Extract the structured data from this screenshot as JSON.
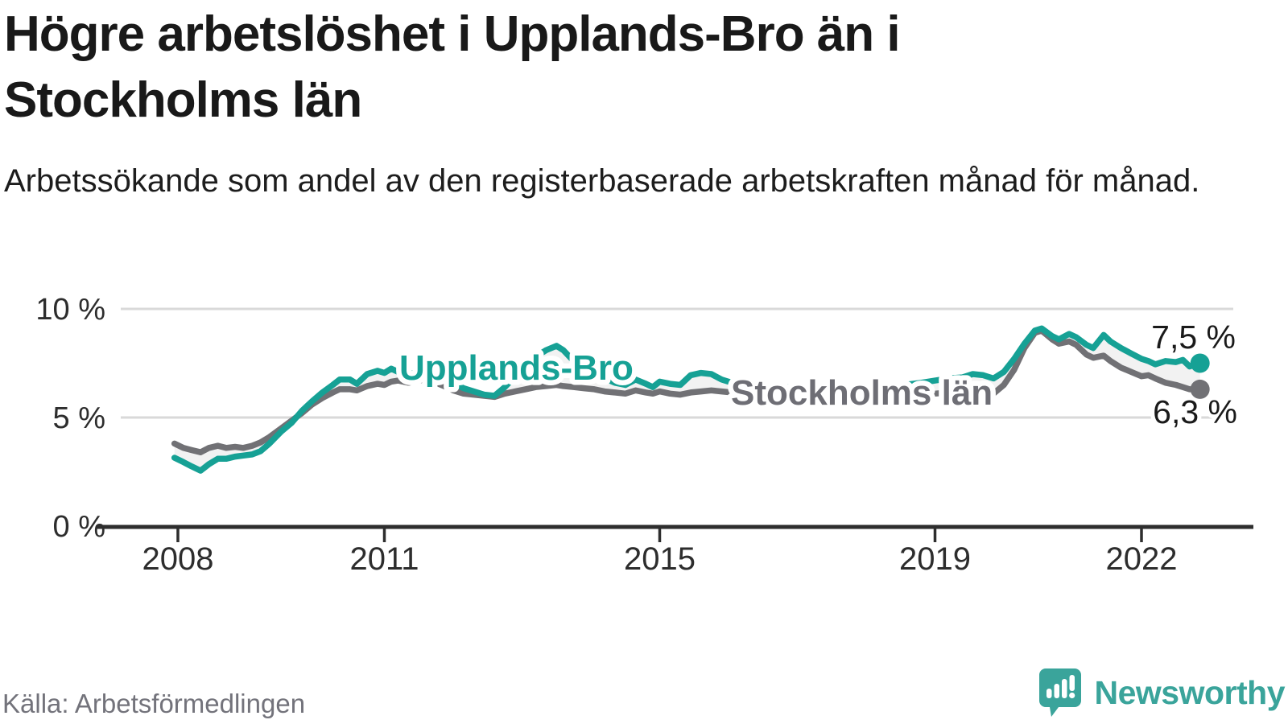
{
  "header": {
    "title_lines": [
      "Högre arbetslöshet i Upplands-Bro än i",
      "Stockholms län"
    ],
    "subtitle": "Arbetssökande som andel av den registerbaserade arbetskraften månad för månad."
  },
  "footer": {
    "source": "Källa: Arbetsförmedlingen",
    "brand_name": "Newsworthy",
    "brand_icon": "newsworthy-speech-bubble-bar-chart-icon",
    "brand_color": "#3aa49b"
  },
  "colors": {
    "upplands_bro": "#16a195",
    "stockholms_lan": "#717175",
    "area_fill": "#f2f2f2",
    "grid": "#d9d9d9",
    "axis": "#2e2e2e",
    "tick_label": "#2d2d2d",
    "value_label": "#1a1a1a"
  },
  "chart_data": {
    "type": "line",
    "unit": "%",
    "grid": "horizontal",
    "x_range": [
      2007.95,
      2023.1
    ],
    "y_range": [
      0,
      10.5
    ],
    "y_ticks": [
      {
        "value": 0,
        "label": "0 %"
      },
      {
        "value": 5,
        "label": "5 %"
      },
      {
        "value": 10,
        "label": "10 %"
      }
    ],
    "x_ticks": [
      {
        "value": 2008,
        "label": "2008"
      },
      {
        "value": 2011,
        "label": "2011"
      },
      {
        "value": 2015,
        "label": "2015"
      },
      {
        "value": 2019,
        "label": "2019"
      },
      {
        "value": 2022,
        "label": "2022"
      }
    ],
    "area_between_series": true,
    "series": [
      {
        "name": "Upplands-Bro",
        "color": "#16a195",
        "end_value": 7.5,
        "end_label": "7,5 %",
        "points": [
          [
            2007.95,
            3.15
          ],
          [
            2008.08,
            2.95
          ],
          [
            2008.2,
            2.75
          ],
          [
            2008.33,
            2.55
          ],
          [
            2008.45,
            2.85
          ],
          [
            2008.58,
            3.1
          ],
          [
            2008.7,
            3.1
          ],
          [
            2008.83,
            3.2
          ],
          [
            2008.95,
            3.25
          ],
          [
            2009.08,
            3.3
          ],
          [
            2009.2,
            3.45
          ],
          [
            2009.33,
            3.8
          ],
          [
            2009.5,
            4.35
          ],
          [
            2009.65,
            4.75
          ],
          [
            2009.8,
            5.3
          ],
          [
            2009.95,
            5.75
          ],
          [
            2010.1,
            6.15
          ],
          [
            2010.25,
            6.5
          ],
          [
            2010.35,
            6.75
          ],
          [
            2010.5,
            6.75
          ],
          [
            2010.6,
            6.55
          ],
          [
            2010.75,
            7.0
          ],
          [
            2010.9,
            7.15
          ],
          [
            2011.0,
            7.05
          ],
          [
            2011.1,
            7.25
          ],
          [
            2011.2,
            7.1
          ],
          [
            2011.35,
            6.9
          ],
          [
            2011.5,
            7.2
          ],
          [
            2011.6,
            7.35
          ],
          [
            2011.75,
            7.1
          ],
          [
            2011.9,
            6.8
          ],
          [
            2012.0,
            6.6
          ],
          [
            2012.15,
            6.35
          ],
          [
            2012.3,
            6.2
          ],
          [
            2012.45,
            6.05
          ],
          [
            2012.6,
            6.0
          ],
          [
            2012.75,
            6.4
          ],
          [
            2012.9,
            6.9
          ],
          [
            2013.05,
            7.3
          ],
          [
            2013.2,
            7.8
          ],
          [
            2013.35,
            8.1
          ],
          [
            2013.5,
            8.3
          ],
          [
            2013.6,
            8.1
          ],
          [
            2013.75,
            7.6
          ],
          [
            2013.9,
            7.2
          ],
          [
            2014.05,
            7.0
          ],
          [
            2014.2,
            6.8
          ],
          [
            2014.35,
            6.6
          ],
          [
            2014.5,
            6.5
          ],
          [
            2014.65,
            6.75
          ],
          [
            2014.8,
            6.55
          ],
          [
            2014.9,
            6.4
          ],
          [
            2015.0,
            6.65
          ],
          [
            2015.15,
            6.55
          ],
          [
            2015.3,
            6.5
          ],
          [
            2015.45,
            6.95
          ],
          [
            2015.6,
            7.05
          ],
          [
            2015.75,
            7.0
          ],
          [
            2015.9,
            6.75
          ],
          [
            2016.05,
            6.6
          ],
          [
            2016.3,
            6.5
          ],
          [
            2016.55,
            6.45
          ],
          [
            2016.8,
            6.4
          ],
          [
            2017.05,
            6.35
          ],
          [
            2017.3,
            6.3
          ],
          [
            2017.55,
            6.3
          ],
          [
            2017.8,
            6.35
          ],
          [
            2018.05,
            6.4
          ],
          [
            2018.3,
            6.45
          ],
          [
            2018.55,
            6.5
          ],
          [
            2018.8,
            6.6
          ],
          [
            2019.0,
            6.7
          ],
          [
            2019.2,
            6.8
          ],
          [
            2019.4,
            6.85
          ],
          [
            2019.55,
            7.0
          ],
          [
            2019.7,
            6.95
          ],
          [
            2019.85,
            6.8
          ],
          [
            2020.0,
            7.1
          ],
          [
            2020.15,
            7.7
          ],
          [
            2020.3,
            8.4
          ],
          [
            2020.45,
            9.0
          ],
          [
            2020.55,
            9.1
          ],
          [
            2020.7,
            8.75
          ],
          [
            2020.8,
            8.6
          ],
          [
            2020.95,
            8.85
          ],
          [
            2021.05,
            8.7
          ],
          [
            2021.2,
            8.35
          ],
          [
            2021.3,
            8.2
          ],
          [
            2021.45,
            8.8
          ],
          [
            2021.55,
            8.5
          ],
          [
            2021.7,
            8.2
          ],
          [
            2021.85,
            7.95
          ],
          [
            2022.0,
            7.7
          ],
          [
            2022.1,
            7.6
          ],
          [
            2022.2,
            7.45
          ],
          [
            2022.35,
            7.6
          ],
          [
            2022.5,
            7.55
          ],
          [
            2022.6,
            7.65
          ],
          [
            2022.7,
            7.35
          ],
          [
            2022.85,
            7.5
          ]
        ]
      },
      {
        "name": "Stockholms län",
        "color": "#717175",
        "end_value": 6.3,
        "end_label": "6,3 %",
        "points": [
          [
            2007.95,
            3.8
          ],
          [
            2008.08,
            3.6
          ],
          [
            2008.2,
            3.5
          ],
          [
            2008.33,
            3.4
          ],
          [
            2008.45,
            3.6
          ],
          [
            2008.58,
            3.7
          ],
          [
            2008.7,
            3.6
          ],
          [
            2008.83,
            3.65
          ],
          [
            2008.95,
            3.6
          ],
          [
            2009.08,
            3.7
          ],
          [
            2009.2,
            3.85
          ],
          [
            2009.33,
            4.1
          ],
          [
            2009.5,
            4.5
          ],
          [
            2009.65,
            4.85
          ],
          [
            2009.8,
            5.2
          ],
          [
            2009.95,
            5.6
          ],
          [
            2010.1,
            5.9
          ],
          [
            2010.25,
            6.15
          ],
          [
            2010.35,
            6.3
          ],
          [
            2010.5,
            6.3
          ],
          [
            2010.6,
            6.25
          ],
          [
            2010.75,
            6.45
          ],
          [
            2010.9,
            6.55
          ],
          [
            2011.0,
            6.5
          ],
          [
            2011.1,
            6.65
          ],
          [
            2011.2,
            6.7
          ],
          [
            2011.35,
            6.6
          ],
          [
            2011.5,
            6.7
          ],
          [
            2011.6,
            6.75
          ],
          [
            2011.75,
            6.6
          ],
          [
            2011.9,
            6.4
          ],
          [
            2012.0,
            6.25
          ],
          [
            2012.15,
            6.1
          ],
          [
            2012.3,
            6.05
          ],
          [
            2012.45,
            6.0
          ],
          [
            2012.6,
            5.95
          ],
          [
            2012.75,
            6.1
          ],
          [
            2012.9,
            6.2
          ],
          [
            2013.05,
            6.3
          ],
          [
            2013.2,
            6.4
          ],
          [
            2013.35,
            6.45
          ],
          [
            2013.5,
            6.5
          ],
          [
            2013.6,
            6.45
          ],
          [
            2013.75,
            6.4
          ],
          [
            2013.9,
            6.35
          ],
          [
            2014.05,
            6.3
          ],
          [
            2014.2,
            6.2
          ],
          [
            2014.35,
            6.15
          ],
          [
            2014.5,
            6.1
          ],
          [
            2014.65,
            6.25
          ],
          [
            2014.8,
            6.15
          ],
          [
            2014.9,
            6.1
          ],
          [
            2015.0,
            6.2
          ],
          [
            2015.15,
            6.1
          ],
          [
            2015.3,
            6.05
          ],
          [
            2015.45,
            6.15
          ],
          [
            2015.6,
            6.2
          ],
          [
            2015.75,
            6.25
          ],
          [
            2015.9,
            6.2
          ],
          [
            2016.05,
            6.15
          ],
          [
            2016.3,
            6.1
          ],
          [
            2016.55,
            6.05
          ],
          [
            2016.8,
            6.0
          ],
          [
            2017.05,
            5.95
          ],
          [
            2017.3,
            5.9
          ],
          [
            2017.55,
            5.9
          ],
          [
            2017.8,
            5.95
          ],
          [
            2018.05,
            6.0
          ],
          [
            2018.3,
            6.0
          ],
          [
            2018.55,
            6.05
          ],
          [
            2018.8,
            6.1
          ],
          [
            2019.0,
            6.1
          ],
          [
            2019.2,
            6.15
          ],
          [
            2019.4,
            6.1
          ],
          [
            2019.55,
            6.2
          ],
          [
            2019.7,
            6.15
          ],
          [
            2019.85,
            6.1
          ],
          [
            2020.0,
            6.5
          ],
          [
            2020.15,
            7.2
          ],
          [
            2020.3,
            8.2
          ],
          [
            2020.45,
            8.9
          ],
          [
            2020.55,
            9.0
          ],
          [
            2020.7,
            8.6
          ],
          [
            2020.8,
            8.4
          ],
          [
            2020.95,
            8.5
          ],
          [
            2021.05,
            8.35
          ],
          [
            2021.2,
            7.9
          ],
          [
            2021.3,
            7.75
          ],
          [
            2021.45,
            7.85
          ],
          [
            2021.55,
            7.6
          ],
          [
            2021.7,
            7.3
          ],
          [
            2021.85,
            7.1
          ],
          [
            2022.0,
            6.9
          ],
          [
            2022.1,
            6.95
          ],
          [
            2022.2,
            6.8
          ],
          [
            2022.35,
            6.6
          ],
          [
            2022.5,
            6.5
          ],
          [
            2022.6,
            6.4
          ],
          [
            2022.7,
            6.3
          ],
          [
            2022.85,
            6.3
          ]
        ]
      }
    ]
  }
}
